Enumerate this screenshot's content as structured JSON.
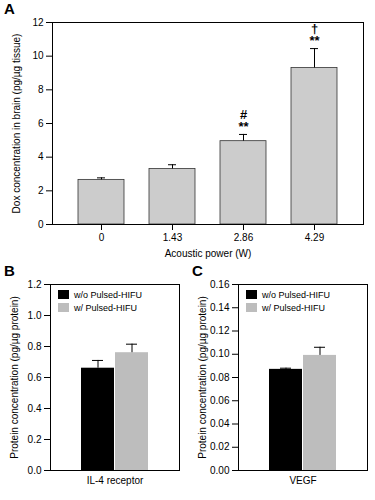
{
  "chart_data": [
    {
      "type": "bar",
      "title": "A",
      "x_label": "Acoustic power (W)",
      "y_label": "Dox concentration in brain (pg/µg tissue)",
      "categories": [
        "0",
        "1.43",
        "2.86",
        "4.29"
      ],
      "values": [
        2.65,
        3.3,
        4.95,
        9.3
      ],
      "errors": [
        0.12,
        0.25,
        0.4,
        1.15
      ],
      "color": "#cccccc",
      "ylim": [
        0,
        12
      ],
      "yticks": [
        0,
        2,
        4,
        6,
        8,
        10,
        12
      ],
      "annotations": [
        {
          "category": "2.86",
          "text": "**"
        },
        {
          "category": "2.86",
          "text": "#"
        },
        {
          "category": "4.29",
          "text": "**"
        },
        {
          "category": "4.29",
          "text": "†"
        }
      ]
    },
    {
      "type": "bar",
      "title": "B",
      "y_label": "Protein concentration (pg/µg protein)",
      "categories": [
        "IL-4 receptor"
      ],
      "series": [
        {
          "name": "w/o Pulsed-HIFU",
          "color": "#000000",
          "values": [
            0.66
          ],
          "errors": [
            0.05
          ]
        },
        {
          "name": "w/ Pulsed-HIFU",
          "color": "#bdbdbd",
          "values": [
            0.76
          ],
          "errors": [
            0.055
          ]
        }
      ],
      "ylim": [
        0,
        1.2
      ],
      "yticks": [
        {
          "value": 0,
          "label": "0.0"
        },
        0.2,
        0.4,
        0.6,
        0.8,
        {
          "value": 1,
          "label": "1.0"
        },
        1.2
      ],
      "legend": "top-left"
    },
    {
      "type": "bar",
      "title": "C",
      "y_label": "Protein concentration (pg/µg protein)",
      "categories": [
        "VEGF"
      ],
      "series": [
        {
          "name": "w/o Pulsed-HIFU",
          "color": "#000000",
          "values": [
            0.087
          ],
          "errors": [
            0.001
          ]
        },
        {
          "name": "w/ Pulsed-HIFU",
          "color": "#bdbdbd",
          "values": [
            0.099
          ],
          "errors": [
            0.007
          ]
        }
      ],
      "ylim": [
        0,
        0.16
      ],
      "yticks": [
        {
          "value": 0,
          "label": "0.00"
        },
        0.02,
        0.04,
        0.06,
        0.08,
        {
          "value": 0.1,
          "label": "0.10"
        },
        0.12,
        0.14,
        0.16
      ],
      "legend": "top-left"
    }
  ]
}
